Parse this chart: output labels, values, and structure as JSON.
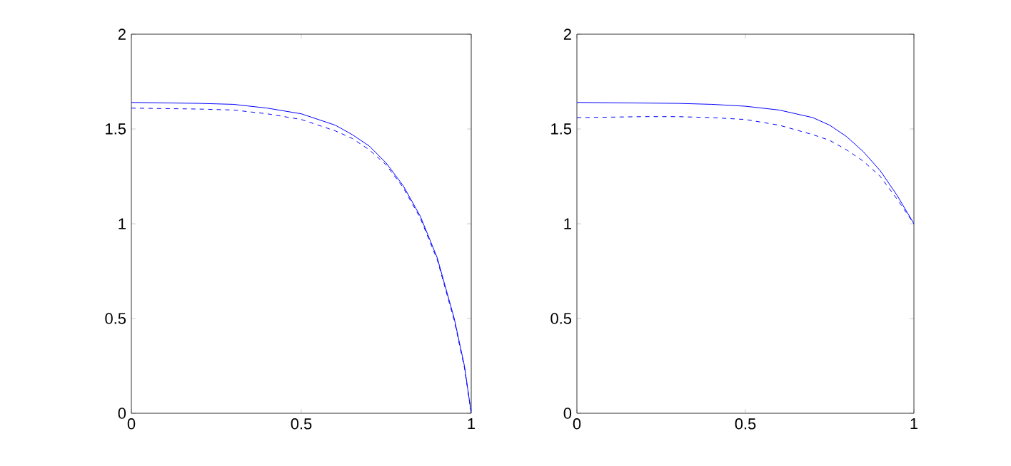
{
  "chart_data": [
    {
      "type": "line",
      "xlim": [
        0,
        1
      ],
      "ylim": [
        0,
        2
      ],
      "xticks": [
        0,
        0.5,
        1
      ],
      "yticks": [
        0,
        0.5,
        1,
        1.5,
        2
      ],
      "series": [
        {
          "color": "#0000ff",
          "line_style": "solid",
          "x": [
            0,
            0.2,
            0.3,
            0.4,
            0.5,
            0.6,
            0.65,
            0.7,
            0.75,
            0.8,
            0.85,
            0.9,
            0.95,
            0.98,
            1
          ],
          "values": [
            1.64,
            1.635,
            1.63,
            1.61,
            1.58,
            1.52,
            1.47,
            1.41,
            1.32,
            1.2,
            1.04,
            0.82,
            0.5,
            0.25,
            0
          ]
        },
        {
          "color": "#0000ff",
          "line_style": "dashed",
          "x": [
            0,
            0.2,
            0.3,
            0.4,
            0.5,
            0.6,
            0.65,
            0.7,
            0.75,
            0.8,
            0.85,
            0.9,
            0.95,
            0.98,
            1
          ],
          "values": [
            1.61,
            1.605,
            1.6,
            1.58,
            1.55,
            1.49,
            1.45,
            1.39,
            1.31,
            1.19,
            1.03,
            0.81,
            0.49,
            0.24,
            0
          ]
        }
      ]
    },
    {
      "type": "line",
      "xlim": [
        0,
        1
      ],
      "ylim": [
        0,
        2
      ],
      "xticks": [
        0,
        0.5,
        1
      ],
      "yticks": [
        0,
        0.5,
        1,
        1.5,
        2
      ],
      "series": [
        {
          "color": "#0000ff",
          "line_style": "solid",
          "x": [
            0,
            0.3,
            0.4,
            0.5,
            0.6,
            0.7,
            0.75,
            0.8,
            0.85,
            0.9,
            0.95,
            1
          ],
          "values": [
            1.64,
            1.635,
            1.63,
            1.62,
            1.6,
            1.56,
            1.52,
            1.46,
            1.38,
            1.28,
            1.15,
            1.0
          ]
        },
        {
          "color": "#0000ff",
          "line_style": "dashed",
          "x": [
            0,
            0.2,
            0.3,
            0.4,
            0.5,
            0.6,
            0.7,
            0.75,
            0.8,
            0.85,
            0.9,
            0.95,
            1
          ],
          "values": [
            1.56,
            1.565,
            1.565,
            1.56,
            1.55,
            1.52,
            1.47,
            1.44,
            1.39,
            1.33,
            1.25,
            1.13,
            1.0
          ]
        }
      ]
    }
  ]
}
